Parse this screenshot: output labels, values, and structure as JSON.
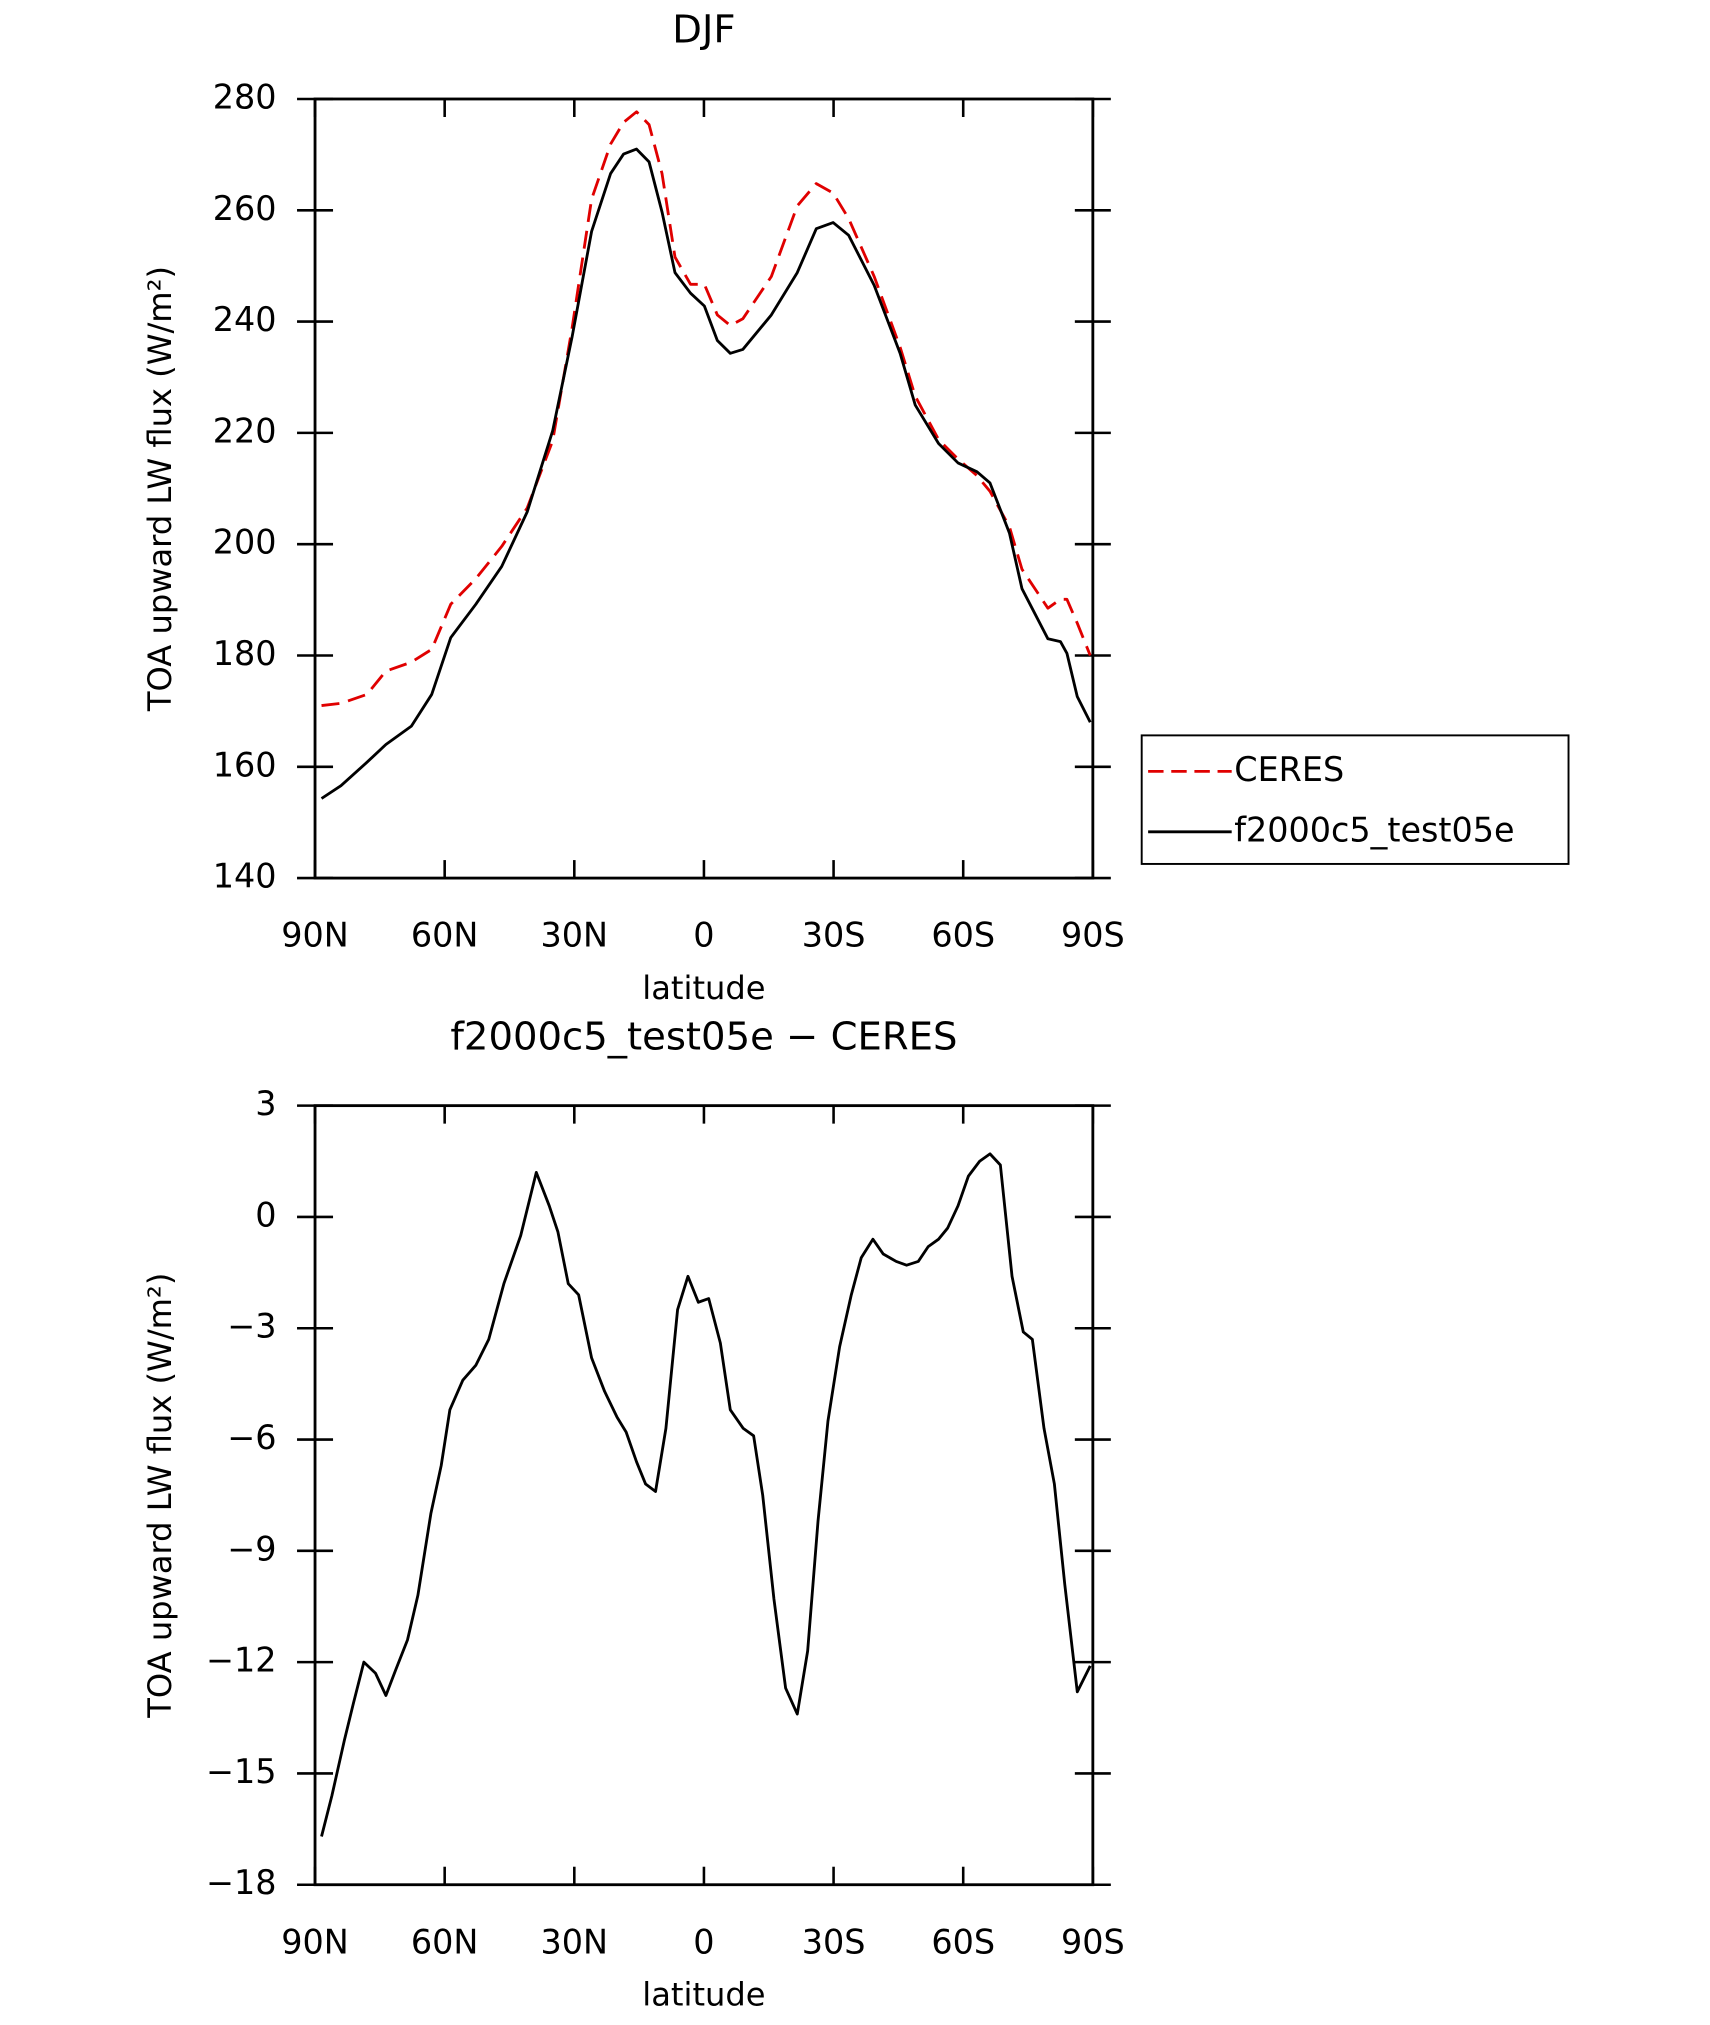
{
  "chart_data": [
    {
      "type": "line",
      "title": "DJF",
      "xlabel": "latitude",
      "ylabel": "TOA upward LW flux (W/m²)",
      "x": [
        88.5,
        84,
        78,
        73.6,
        67.7,
        63,
        58.6,
        52.8,
        46.8,
        40.9,
        35,
        30.5,
        26,
        21.6,
        18.6,
        15.6,
        12.7,
        9.7,
        6.7,
        3.1,
        -0.1,
        -3.1,
        -6.1,
        -9,
        -15.6,
        -21.6,
        -26,
        -29.9,
        -33.5,
        -39.4,
        -45.4,
        -48.9,
        -54.3,
        -58.8,
        -63.2,
        -66.2,
        -70.7,
        -73.6,
        -79.6,
        -82.5,
        -84,
        -86.4,
        -89.4
      ],
      "series": [
        {
          "name": "CERES",
          "color": "#e00000",
          "linestyle": "dashed",
          "values": [
            171,
            171.4,
            173,
            177.2,
            178.8,
            181.1,
            189.2,
            193.8,
            199.6,
            206.5,
            218.6,
            238.9,
            262,
            271.9,
            275.8,
            277.7,
            275.4,
            266.6,
            251.6,
            246.7,
            246.7,
            241.2,
            239.3,
            240.5,
            248.1,
            260.8,
            264.8,
            263.1,
            258.5,
            248.1,
            235.4,
            226.6,
            218.8,
            215.3,
            212.3,
            209.5,
            203.1,
            195.5,
            188.5,
            190.1,
            190.1,
            185.8,
            180
          ]
        },
        {
          "name": "f2000c5_test05e",
          "color": "#000000",
          "linestyle": "solid",
          "values": [
            154.3,
            156.6,
            160.8,
            164,
            167.3,
            173,
            183.2,
            189.2,
            196,
            205.8,
            220.4,
            237.3,
            256.2,
            266.6,
            270.1,
            271,
            268.7,
            259.7,
            248.8,
            245.1,
            242.8,
            236.6,
            234.3,
            235,
            241.2,
            248.8,
            256.7,
            257.8,
            255.5,
            246.5,
            234.3,
            225,
            218.1,
            214.6,
            213,
            211,
            202,
            192,
            183,
            182.5,
            180.4,
            172.6,
            168
          ]
        }
      ],
      "xlim": [
        90,
        -90
      ],
      "xticks": [
        {
          "value": 90,
          "label": "90N"
        },
        {
          "value": 60,
          "label": "60N"
        },
        {
          "value": 30,
          "label": "30N"
        },
        0,
        {
          "value": -30,
          "label": "30S"
        },
        {
          "value": -60,
          "label": "60S"
        },
        {
          "value": -90,
          "label": "90S"
        }
      ],
      "ylim": [
        140,
        280
      ],
      "yticks": [
        140,
        160,
        180,
        200,
        220,
        240,
        260,
        280
      ],
      "legend": "right"
    },
    {
      "type": "line",
      "title": "f2000c5_test05e − CERES",
      "xlabel": "latitude",
      "ylabel": "TOA upward LW flux (W/m²)",
      "x": [
        88.5,
        86.1,
        83.2,
        81.1,
        78.7,
        76,
        73.6,
        71.3,
        68.6,
        66.2,
        63.2,
        60.8,
        58.8,
        55.8,
        52.8,
        49.8,
        46.3,
        42.4,
        38.8,
        35.8,
        33.8,
        31.4,
        29,
        26,
        23,
        20.1,
        18,
        15.6,
        13.5,
        11.2,
        8.8,
        6.1,
        3.7,
        1.3,
        -1.1,
        -3.8,
        -6.1,
        -9.1,
        -11.5,
        -13.6,
        -16.2,
        -18.9,
        -21.6,
        -24,
        -26.4,
        -28.7,
        -31.4,
        -34.1,
        -36.4,
        -39.1,
        -41.5,
        -44.5,
        -46.9,
        -49.6,
        -51.9,
        -54.3,
        -56.4,
        -58.8,
        -61.2,
        -63.8,
        -66.2,
        -68.6,
        -71.3,
        -73.9,
        -76,
        -78.7,
        -81.1,
        -83.5,
        -86.4,
        -89.4
      ],
      "series": [
        {
          "color": "#000000",
          "linestyle": "solid",
          "values": [
            -16.7,
            -15.6,
            -14.1,
            -13.1,
            -12,
            -12.3,
            -12.9,
            -12.2,
            -11.4,
            -10.2,
            -8,
            -6.7,
            -5.2,
            -4.4,
            -4,
            -3.3,
            -1.8,
            -0.5,
            1.2,
            0.3,
            -0.4,
            -1.8,
            -2.1,
            -3.8,
            -4.7,
            -5.4,
            -5.8,
            -6.6,
            -7.2,
            -7.4,
            -5.7,
            -2.5,
            -1.6,
            -2.3,
            -2.2,
            -3.4,
            -5.2,
            -5.7,
            -5.9,
            -7.5,
            -10.3,
            -12.7,
            -13.4,
            -11.7,
            -8.2,
            -5.5,
            -3.5,
            -2.1,
            -1.1,
            -0.6,
            -1,
            -1.2,
            -1.3,
            -1.2,
            -0.8,
            -0.6,
            -0.3,
            0.3,
            1.1,
            1.5,
            1.7,
            1.4,
            -1.6,
            -3.1,
            -3.3,
            -5.7,
            -7.2,
            -9.9,
            -12.8,
            -12.1
          ]
        }
      ],
      "xlim": [
        90,
        -90
      ],
      "xticks": [
        {
          "value": 90,
          "label": "90N"
        },
        {
          "value": 60,
          "label": "60N"
        },
        {
          "value": 30,
          "label": "30N"
        },
        0,
        {
          "value": -30,
          "label": "30S"
        },
        {
          "value": -60,
          "label": "60S"
        },
        {
          "value": -90,
          "label": "90S"
        }
      ],
      "ylim": [
        -18,
        3
      ],
      "yticks": [
        {
          "value": -18,
          "label": "−18"
        },
        {
          "value": -15,
          "label": "−15"
        },
        {
          "value": -12,
          "label": "−12"
        },
        {
          "value": -9,
          "label": "−9"
        },
        {
          "value": -6,
          "label": "−6"
        },
        {
          "value": -3,
          "label": "−3"
        },
        0,
        3
      ]
    }
  ]
}
